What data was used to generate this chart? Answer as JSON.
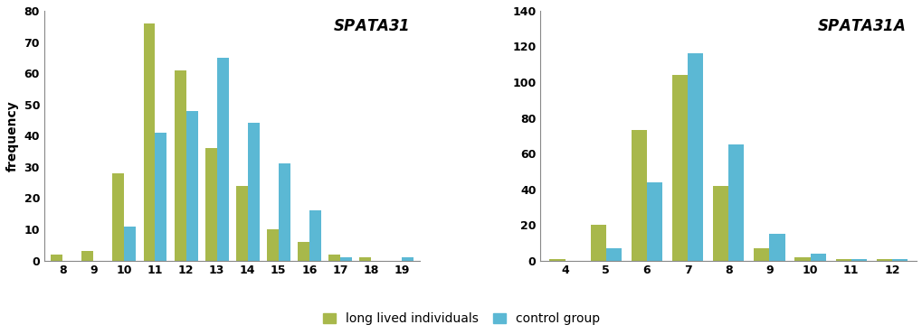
{
  "spata31": {
    "title": "SPATA31",
    "categories": [
      8,
      9,
      10,
      11,
      12,
      13,
      14,
      15,
      16,
      17,
      18,
      19
    ],
    "long_lived": [
      2,
      3,
      28,
      76,
      61,
      36,
      24,
      10,
      6,
      2,
      1,
      0
    ],
    "control": [
      0,
      0,
      11,
      41,
      48,
      65,
      44,
      31,
      16,
      1,
      0,
      1
    ],
    "xlim": [
      7.4,
      19.6
    ],
    "ylim": [
      0,
      80
    ],
    "yticks": [
      0,
      10,
      20,
      30,
      40,
      50,
      60,
      70,
      80
    ],
    "xticks": [
      8,
      9,
      10,
      11,
      12,
      13,
      14,
      15,
      16,
      17,
      18,
      19
    ]
  },
  "spata31a": {
    "title": "SPATA31A",
    "categories": [
      4,
      5,
      6,
      7,
      8,
      9,
      10,
      11,
      12
    ],
    "long_lived": [
      1,
      20,
      73,
      104,
      42,
      7,
      2,
      1,
      1
    ],
    "control": [
      0,
      7,
      44,
      116,
      65,
      15,
      4,
      1,
      1
    ],
    "xlim": [
      3.4,
      12.6
    ],
    "ylim": [
      0,
      140
    ],
    "yticks": [
      0,
      20,
      40,
      60,
      80,
      100,
      120,
      140
    ],
    "xticks": [
      4,
      5,
      6,
      7,
      8,
      9,
      10,
      11,
      12
    ]
  },
  "color_long_lived": "#a8b84b",
  "color_control": "#5bb8d4",
  "bar_width": 0.38,
  "ylabel": "frequency",
  "legend_long_lived": "long lived individuals",
  "legend_control": "control group",
  "background_color": "#ffffff",
  "title_fontsize": 12,
  "axis_fontsize": 10,
  "tick_fontsize": 9,
  "legend_fontsize": 10
}
